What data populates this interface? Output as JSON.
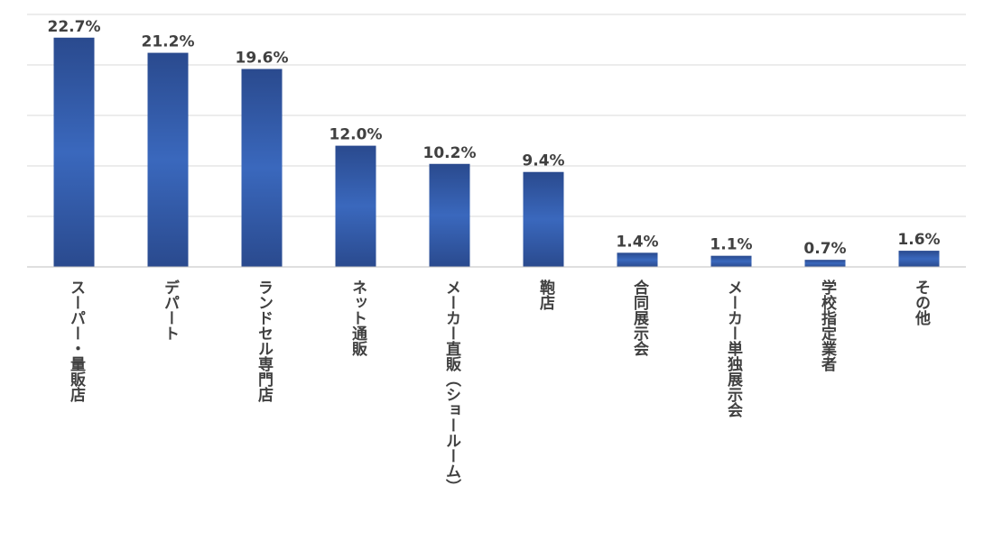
{
  "chart_data": {
    "type": "bar",
    "categories": [
      "スーパー・量販店",
      "デパート",
      "ランドセル専門店",
      "ネット通販",
      "メーカー直販（ショールーム）",
      "鞄店",
      "合同展示会",
      "メーカー単独展示会",
      "学校指定業者",
      "その他"
    ],
    "values": [
      22.7,
      21.2,
      19.6,
      12.0,
      10.2,
      9.4,
      1.4,
      1.1,
      0.7,
      1.6
    ],
    "data_labels": [
      "22.7%",
      "21.2%",
      "19.6%",
      "12.0%",
      "10.2%",
      "9.4%",
      "1.4%",
      "1.1%",
      "0.7%",
      "1.6%"
    ],
    "ylim": [
      0,
      25
    ],
    "grid": true,
    "colors": {
      "bar_edge": "#2a4a8e",
      "bar_center": "#3a68bd"
    }
  }
}
